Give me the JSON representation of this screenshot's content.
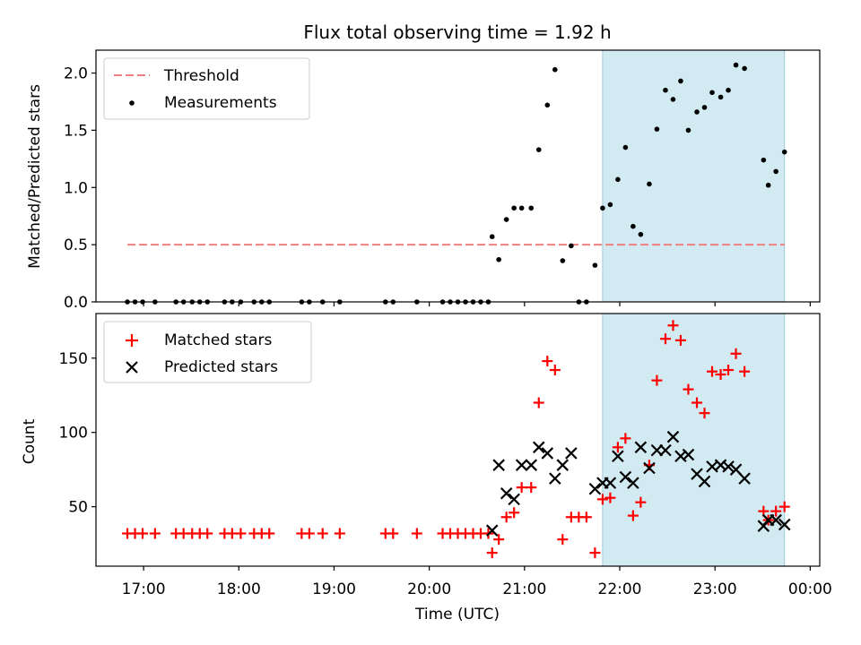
{
  "title": "Flux total observing time = 1.92 h",
  "colors": {
    "threshold": "#f08080",
    "measurement": "#000000",
    "matched": "#ff0000",
    "predicted": "#000000",
    "observing_span": "#add8e6"
  },
  "chart_data": [
    {
      "type": "scatter",
      "panel": "top",
      "ylabel": "Matched/Predicted stars",
      "xlim": [
        16.5,
        24.1
      ],
      "ylim": [
        0,
        2.2
      ],
      "yticks": [
        0.0,
        0.5,
        1.0,
        1.5,
        2.0
      ],
      "ytick_labels": [
        "0.0",
        "0.5",
        "1.0",
        "1.5",
        "2.0"
      ],
      "legend_position": "top-left",
      "legend": [
        {
          "label": "Threshold",
          "marker": "dashed-line"
        },
        {
          "label": "Measurements",
          "marker": "dot"
        }
      ],
      "shaded_span": {
        "x": [
          21.82,
          23.73
        ]
      },
      "threshold": {
        "value": 0.5,
        "x": [
          16.83,
          23.73
        ]
      },
      "measurements": {
        "x": [
          16.83,
          16.91,
          16.99,
          17.12,
          17.34,
          17.42,
          17.51,
          17.59,
          17.67,
          17.85,
          17.93,
          18.02,
          18.16,
          18.24,
          18.32,
          18.66,
          18.74,
          18.88,
          19.06,
          19.54,
          19.62,
          19.87,
          20.14,
          20.22,
          20.3,
          20.38,
          20.46,
          20.54,
          20.62,
          20.66,
          20.73,
          20.81,
          20.89,
          20.97,
          21.07,
          21.15,
          21.24,
          21.32,
          21.4,
          21.49,
          21.57,
          21.65,
          21.74,
          21.82,
          21.9,
          21.98,
          22.06,
          22.14,
          22.22,
          22.31,
          22.39,
          22.48,
          22.56,
          22.64,
          22.72,
          22.81,
          22.89,
          22.97,
          23.06,
          23.14,
          23.22,
          23.31,
          23.51,
          23.56,
          23.64,
          23.73
        ],
        "y": [
          0,
          0,
          0,
          0,
          0,
          0,
          0,
          0,
          0,
          0,
          0,
          0,
          0,
          0,
          0,
          0,
          0,
          0,
          0,
          0,
          0,
          0,
          0,
          0,
          0,
          0,
          0,
          0,
          0,
          0.57,
          0.37,
          0.72,
          0.82,
          0.82,
          0.82,
          1.33,
          1.72,
          2.03,
          0.36,
          0.49,
          0,
          0,
          0.32,
          0.82,
          0.85,
          1.07,
          1.35,
          0.66,
          0.59,
          1.03,
          1.51,
          1.85,
          1.77,
          1.93,
          1.5,
          1.66,
          1.7,
          1.83,
          1.79,
          1.85,
          2.07,
          2.04,
          1.24,
          1.02,
          1.14,
          1.31
        ]
      }
    },
    {
      "type": "scatter",
      "panel": "bottom",
      "xlabel": "Time (UTC)",
      "ylabel": "Count",
      "xlim": [
        16.5,
        24.1
      ],
      "ylim": [
        10,
        180
      ],
      "yticks": [
        50,
        100,
        150
      ],
      "ytick_labels": [
        "50",
        "100",
        "150"
      ],
      "xticks": [
        17,
        18,
        19,
        20,
        21,
        22,
        23,
        24
      ],
      "xtick_labels": [
        "17:00",
        "18:00",
        "19:00",
        "20:00",
        "21:00",
        "22:00",
        "23:00",
        "00:00"
      ],
      "legend_position": "top-left",
      "shaded_span": {
        "x": [
          21.82,
          23.73
        ]
      },
      "series": [
        {
          "name": "Matched stars",
          "marker": "plus",
          "x": [
            16.83,
            16.91,
            16.99,
            17.12,
            17.34,
            17.42,
            17.51,
            17.59,
            17.67,
            17.85,
            17.93,
            18.02,
            18.16,
            18.24,
            18.32,
            18.66,
            18.74,
            18.88,
            19.06,
            19.54,
            19.62,
            19.87,
            20.14,
            20.22,
            20.3,
            20.38,
            20.46,
            20.54,
            20.62,
            20.66,
            20.73,
            20.81,
            20.89,
            20.97,
            21.07,
            21.15,
            21.24,
            21.32,
            21.4,
            21.49,
            21.57,
            21.65,
            21.74,
            21.82,
            21.9,
            21.98,
            22.06,
            22.14,
            22.22,
            22.31,
            22.39,
            22.48,
            22.56,
            22.64,
            22.72,
            22.81,
            22.89,
            22.97,
            23.06,
            23.14,
            23.22,
            23.31,
            23.51,
            23.56,
            23.64,
            23.73
          ],
          "y": [
            32,
            32,
            32,
            32,
            32,
            32,
            32,
            32,
            32,
            32,
            32,
            32,
            32,
            32,
            32,
            32,
            32,
            32,
            32,
            32,
            32,
            32,
            32,
            32,
            32,
            32,
            32,
            32,
            32,
            19,
            28,
            43,
            46,
            63,
            63,
            120,
            148,
            142,
            28,
            43,
            43,
            43,
            19,
            55,
            56,
            90,
            96,
            44,
            53,
            78,
            135,
            163,
            172,
            162,
            129,
            120,
            113,
            141,
            139,
            142,
            153,
            141,
            47,
            41,
            47,
            50
          ]
        },
        {
          "name": "Predicted stars",
          "marker": "x",
          "x": [
            20.66,
            20.73,
            20.81,
            20.89,
            20.97,
            21.07,
            21.15,
            21.24,
            21.32,
            21.4,
            21.49,
            21.74,
            21.82,
            21.9,
            21.98,
            22.06,
            22.14,
            22.22,
            22.31,
            22.39,
            22.48,
            22.56,
            22.64,
            22.72,
            22.81,
            22.89,
            22.97,
            23.06,
            23.14,
            23.22,
            23.31,
            23.51,
            23.56,
            23.64,
            23.73
          ],
          "y": [
            34,
            78,
            59,
            55,
            78,
            78,
            90,
            86,
            69,
            78,
            86,
            62,
            66,
            66,
            84,
            70,
            66,
            90,
            76,
            88,
            88,
            97,
            84,
            85,
            72,
            67,
            77,
            78,
            77,
            75,
            69,
            37,
            41,
            41,
            38
          ]
        }
      ]
    }
  ]
}
